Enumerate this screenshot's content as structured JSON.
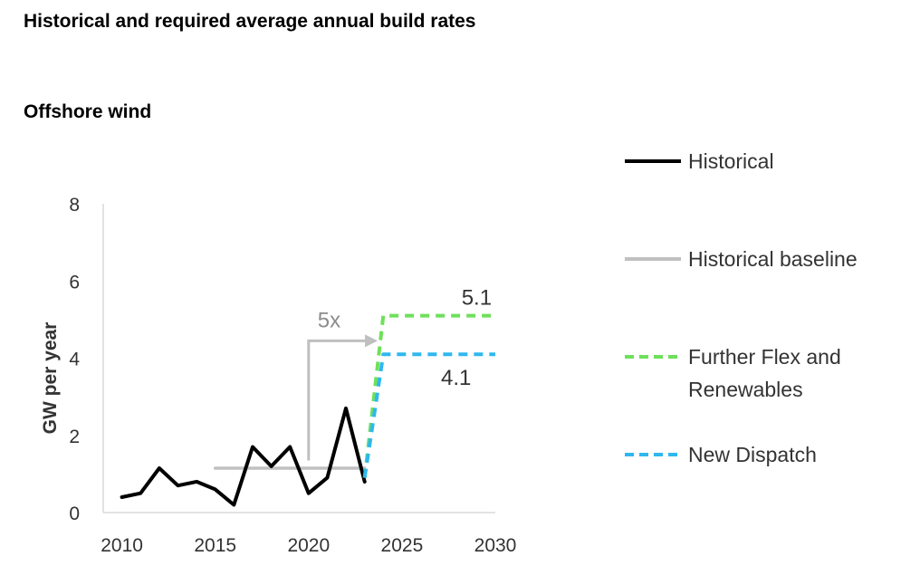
{
  "title": "Historical and required average annual build rates",
  "subtitle": "Offshore wind",
  "chart_data": {
    "type": "line",
    "ylabel": "GW per year",
    "xlim": [
      2009,
      2030
    ],
    "ylim": [
      0,
      8
    ],
    "x_ticks": [
      2010,
      2015,
      2020,
      2025,
      2030
    ],
    "y_ticks": [
      0,
      2,
      4,
      6,
      8
    ],
    "grid": false,
    "legend_position": "right",
    "series": [
      {
        "name": "Historical",
        "color": "#000000",
        "style": "solid",
        "x": [
          2010,
          2011,
          2012,
          2013,
          2014,
          2015,
          2016,
          2017,
          2018,
          2019,
          2020,
          2021,
          2022,
          2023
        ],
        "y": [
          0.4,
          0.5,
          1.15,
          0.7,
          0.8,
          0.6,
          0.2,
          1.7,
          1.2,
          1.7,
          0.5,
          0.9,
          2.7,
          0.8
        ]
      },
      {
        "name": "Historical baseline",
        "color": "#c0c0c0",
        "style": "solid",
        "x": [
          2015,
          2023
        ],
        "y": [
          1.15,
          1.15
        ]
      },
      {
        "name": "Further Flex and Renewables",
        "color": "#6ee05a",
        "style": "dashed",
        "x": [
          2023,
          2024,
          2030
        ],
        "y": [
          0.9,
          5.1,
          5.1
        ]
      },
      {
        "name": "New Dispatch",
        "color": "#2eb8f0",
        "style": "dashed",
        "x": [
          2023,
          2024,
          2030
        ],
        "y": [
          0.9,
          4.1,
          4.1
        ]
      }
    ],
    "annotations": {
      "multiplier": "5x",
      "ffr_value": "5.1",
      "nd_value": "4.1"
    }
  }
}
